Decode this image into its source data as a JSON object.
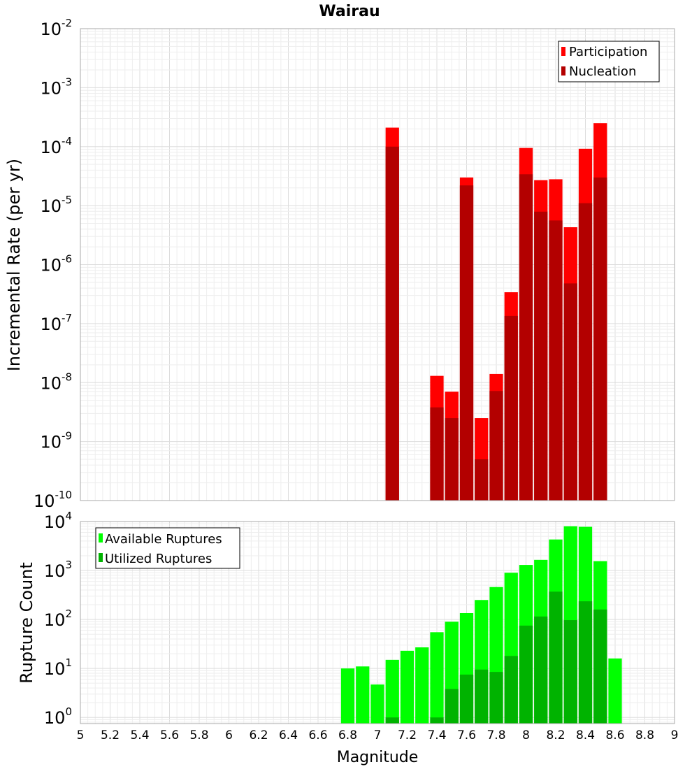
{
  "chart_data": [
    {
      "type": "bar",
      "title": "Wairau",
      "ylabel": "Incremental Rate (per yr)",
      "xlabel": "",
      "xlim": [
        5,
        9
      ],
      "ylim": [
        1e-10,
        0.01
      ],
      "yscale": "log",
      "grid": true,
      "legend_position": "top-right",
      "bar_width": 0.1,
      "y_ticks": [
        {
          "base": "10",
          "exp": "-10",
          "value": 1e-10
        },
        {
          "base": "10",
          "exp": "-9",
          "value": 1e-09
        },
        {
          "base": "10",
          "exp": "-8",
          "value": 1e-08
        },
        {
          "base": "10",
          "exp": "-7",
          "value": 1e-07
        },
        {
          "base": "10",
          "exp": "-6",
          "value": 1e-06
        },
        {
          "base": "10",
          "exp": "-5",
          "value": 1e-05
        },
        {
          "base": "10",
          "exp": "-4",
          "value": 0.0001
        },
        {
          "base": "10",
          "exp": "-3",
          "value": 0.001
        },
        {
          "base": "10",
          "exp": "-2",
          "value": 0.01
        }
      ],
      "series": [
        {
          "name": "Participation",
          "color": "#ff0000",
          "x": [
            7.1,
            7.4,
            7.5,
            7.6,
            7.7,
            7.8,
            7.9,
            8.0,
            8.1,
            8.2,
            8.3,
            8.4,
            8.5
          ],
          "values": [
            0.00021,
            1.3e-08,
            7e-09,
            3e-05,
            2.5e-09,
            1.4e-08,
            3.4e-07,
            9.5e-05,
            2.7e-05,
            2.8e-05,
            4.3e-06,
            9.2e-05,
            0.00025
          ]
        },
        {
          "name": "Nucleation",
          "color": "#b30000",
          "x": [
            7.1,
            7.4,
            7.5,
            7.6,
            7.7,
            7.8,
            7.9,
            8.0,
            8.1,
            8.2,
            8.3,
            8.4,
            8.5
          ],
          "values": [
            0.0001,
            3.8e-09,
            2.5e-09,
            2.2e-05,
            5e-10,
            7.2e-09,
            1.35e-07,
            3.4e-05,
            7.9e-06,
            5.6e-06,
            4.8e-07,
            1.1e-05,
            3e-05
          ]
        }
      ]
    },
    {
      "type": "bar",
      "title": "",
      "ylabel": "Rupture Count",
      "xlabel": "Magnitude",
      "xlim": [
        5,
        9
      ],
      "ylim": [
        0.75,
        10000
      ],
      "yscale": "log",
      "grid": true,
      "legend_position": "top-left",
      "bar_width": 0.1,
      "x_ticks": [
        "5",
        "5.2",
        "5.4",
        "5.6",
        "5.8",
        "6",
        "6.2",
        "6.4",
        "6.6",
        "6.8",
        "7",
        "7.2",
        "7.4",
        "7.6",
        "7.8",
        "8",
        "8.2",
        "8.4",
        "8.6",
        "8.8",
        "9"
      ],
      "y_ticks": [
        {
          "base": "10",
          "exp": "0",
          "value": 1
        },
        {
          "base": "10",
          "exp": "1",
          "value": 10
        },
        {
          "base": "10",
          "exp": "2",
          "value": 100
        },
        {
          "base": "10",
          "exp": "3",
          "value": 1000
        },
        {
          "base": "10",
          "exp": "4",
          "value": 10000
        }
      ],
      "series": [
        {
          "name": "Available Ruptures",
          "color": "#00ff00",
          "x": [
            6.8,
            6.9,
            7.0,
            7.1,
            7.2,
            7.3,
            7.4,
            7.5,
            7.6,
            7.7,
            7.8,
            7.9,
            8.0,
            8.1,
            8.2,
            8.3,
            8.4,
            8.5,
            8.6
          ],
          "values": [
            10,
            11,
            4.7,
            15,
            23,
            27,
            55,
            90,
            135,
            250,
            460,
            900,
            1300,
            1650,
            4300,
            8000,
            7800,
            1550,
            16
          ]
        },
        {
          "name": "Utilized Ruptures",
          "color": "#00b300",
          "x": [
            7.1,
            7.4,
            7.5,
            7.6,
            7.7,
            7.8,
            7.9,
            8.0,
            8.1,
            8.2,
            8.3,
            8.4,
            8.5
          ],
          "values": [
            1,
            1,
            3.8,
            7.5,
            9.5,
            8.5,
            18,
            75,
            115,
            370,
            97,
            235,
            160
          ]
        }
      ]
    }
  ]
}
